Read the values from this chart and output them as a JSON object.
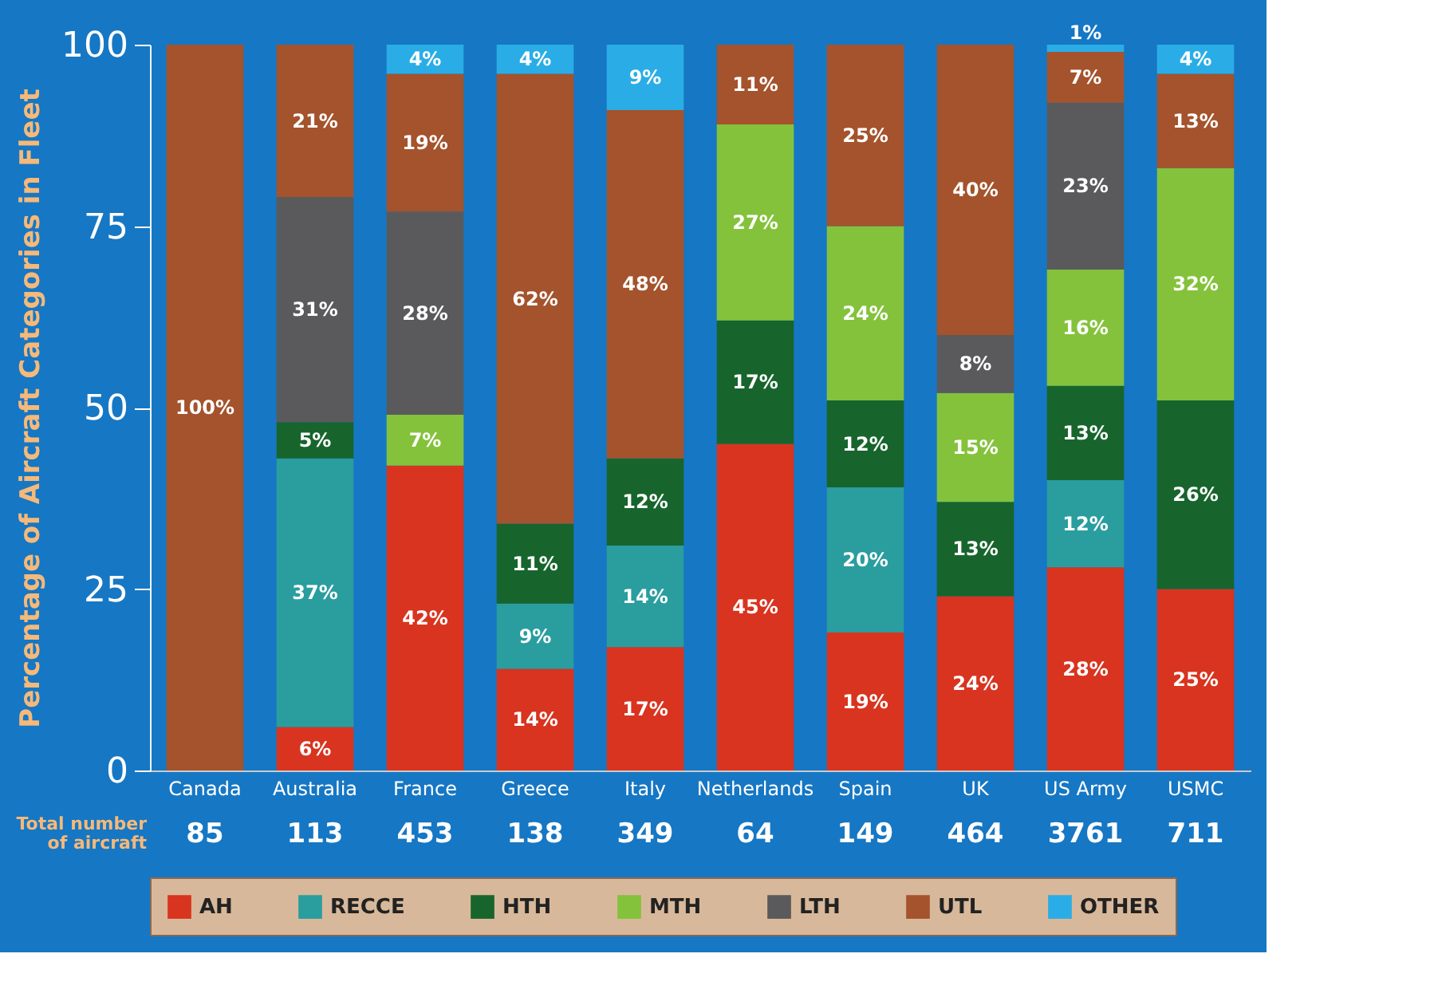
{
  "chart_data": {
    "type": "bar",
    "stacked": true,
    "ylabel": "Percentage of Aircraft Categories in Fleet",
    "categories": [
      "Canada",
      "Australia",
      "France",
      "Greece",
      "Italy",
      "Netherlands",
      "Spain",
      "UK",
      "US Army",
      "USMC"
    ],
    "series": [
      {
        "name": "AH",
        "color": "#d8341f",
        "values": [
          null,
          6,
          42,
          14,
          17,
          45,
          19,
          24,
          28,
          25
        ],
        "value_labels": [
          null,
          "6%",
          "42%",
          "14%",
          "17%",
          "45%",
          "19%",
          "24%",
          "28%",
          "25%"
        ]
      },
      {
        "name": "RECCE",
        "color": "#2a9d9f",
        "values": [
          null,
          37,
          null,
          9,
          14,
          null,
          20,
          null,
          12,
          null
        ],
        "value_labels": [
          null,
          "37%",
          null,
          "9%",
          "14%",
          null,
          "20%",
          null,
          "12%",
          null
        ]
      },
      {
        "name": "HTH",
        "color": "#17652c",
        "values": [
          null,
          5,
          null,
          11,
          12,
          17,
          12,
          13,
          13,
          26
        ],
        "value_labels": [
          null,
          "5%",
          null,
          "11%",
          "12%",
          "17%",
          "12%",
          "13%",
          "13%",
          "26%"
        ]
      },
      {
        "name": "MTH",
        "color": "#84c23c",
        "values": [
          null,
          null,
          7,
          null,
          null,
          27,
          24,
          15,
          16,
          32
        ],
        "value_labels": [
          null,
          null,
          "7%",
          null,
          null,
          "27%",
          "24%",
          "15%",
          "16%",
          "32%"
        ]
      },
      {
        "name": "LTH",
        "color": "#5a5a5c",
        "values": [
          null,
          31,
          28,
          null,
          null,
          null,
          null,
          8,
          23,
          null
        ],
        "value_labels": [
          null,
          "31%",
          "28%",
          null,
          null,
          null,
          null,
          "8%",
          "23%",
          null
        ]
      },
      {
        "name": "UTL",
        "color": "#a4532c",
        "values": [
          100,
          21,
          19,
          62,
          48,
          11,
          25,
          40,
          7,
          13
        ],
        "value_labels": [
          "100%",
          "21%",
          "19%",
          "62%",
          "48%",
          "11%",
          "25%",
          "40%",
          "7%",
          "13%"
        ]
      },
      {
        "name": "OTHER",
        "color": "#2aade6",
        "values": [
          null,
          null,
          4,
          4,
          9,
          null,
          null,
          null,
          1,
          4
        ],
        "value_labels": [
          null,
          null,
          "4%",
          "4%",
          "9%",
          null,
          null,
          null,
          "1%",
          "4%"
        ]
      }
    ],
    "ylim": [
      0,
      100
    ],
    "yticks": [
      0,
      25,
      50,
      75,
      100
    ],
    "grid": false,
    "legend": "bottom",
    "annotations": [
      "Total number of aircraft",
      "85",
      "113",
      "453",
      "138",
      "349",
      "64",
      "149",
      "464",
      "3761",
      "711"
    ]
  }
}
